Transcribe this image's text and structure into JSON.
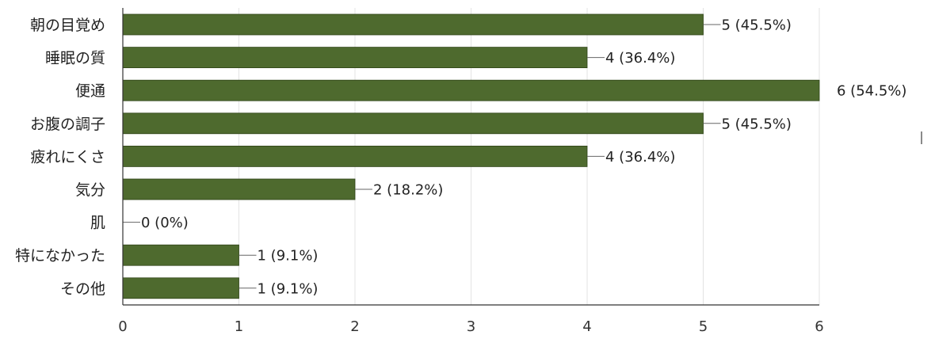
{
  "chart_data": {
    "type": "bar",
    "orientation": "horizontal",
    "categories": [
      "朝の目覚め",
      "睡眠の質",
      "便通",
      "お腹の調子",
      "疲れにくさ",
      "気分",
      "肌",
      "特になかった",
      "その他"
    ],
    "values": [
      5,
      4,
      6,
      5,
      4,
      2,
      0,
      1,
      1
    ],
    "data_labels": [
      "5 (45.5%)",
      "4 (36.4%)",
      "6 (54.5%)",
      "5 (45.5%)",
      "4 (36.4%)",
      "2 (18.2%)",
      "0 (0%)",
      "1 (9.1%)",
      "1 (9.1%)"
    ],
    "x_ticks": [
      "0",
      "1",
      "2",
      "3",
      "4",
      "5",
      "6"
    ],
    "xlim": [
      0,
      6
    ],
    "grid": true,
    "bar_color": "#4e6a2e",
    "title": "",
    "xlabel": "",
    "ylabel": ""
  }
}
